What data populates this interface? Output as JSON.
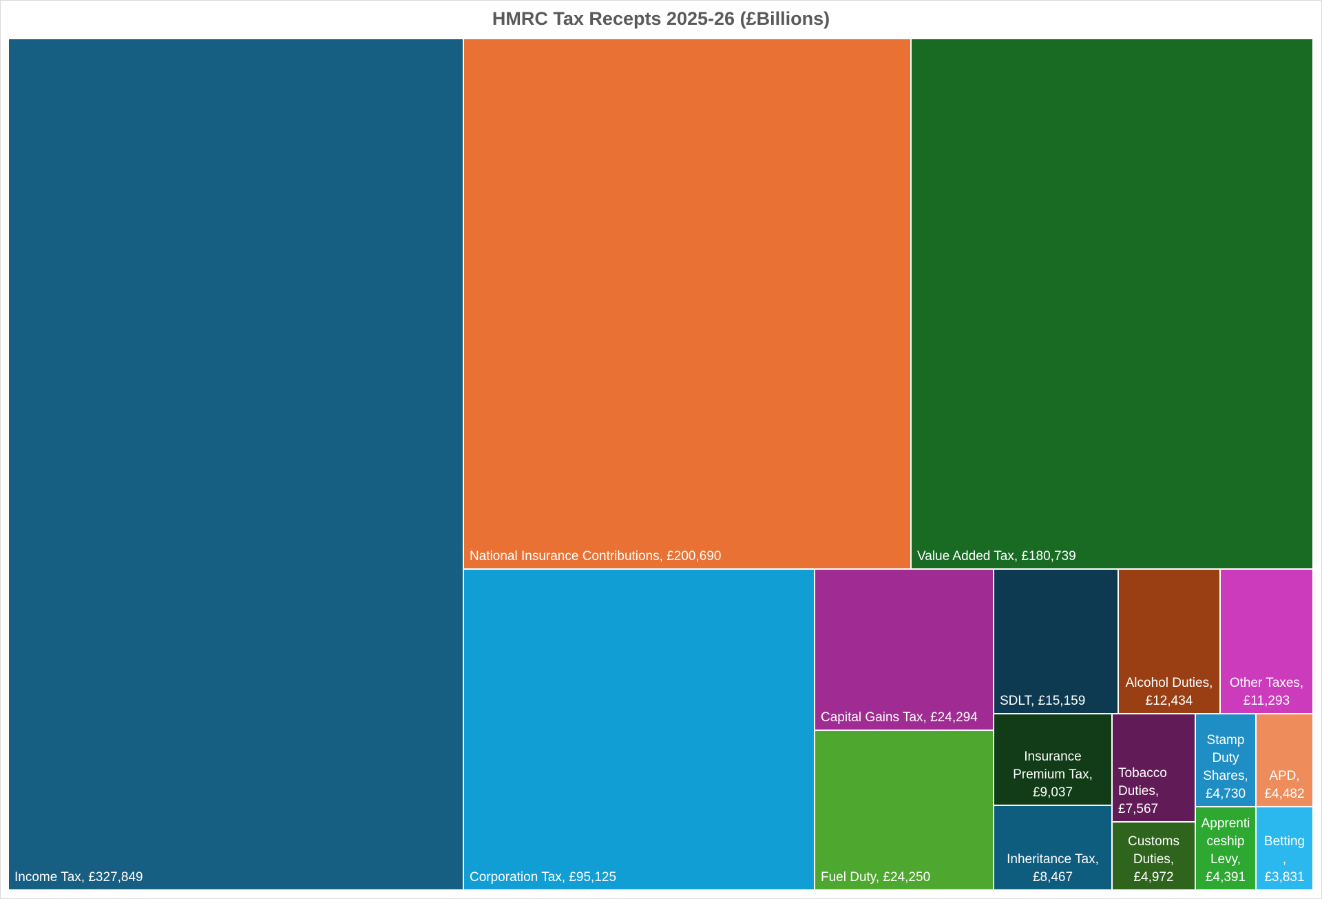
{
  "chart_data": {
    "type": "treemap",
    "title": "HMRC Tax Recepts 2025-26 (£Billions)",
    "items": [
      {
        "label": "Income Tax, £327,849",
        "name": "Income Tax",
        "value": 327849,
        "color": "#175F82"
      },
      {
        "label": "National Insurance Contributions, £200,690",
        "name": "National Insurance Contributions",
        "value": 200690,
        "color": "#E97133"
      },
      {
        "label": "Value Added Tax, £180,739",
        "name": "Value Added Tax",
        "value": 180739,
        "color": "#196B24"
      },
      {
        "label": "Corporation Tax, £95,125",
        "name": "Corporation Tax",
        "value": 95125,
        "color": "#119ED5"
      },
      {
        "label": "Capital Gains Tax, £24,294",
        "name": "Capital Gains Tax",
        "value": 24294,
        "color": "#A02B93"
      },
      {
        "label": "Fuel Duty, £24,250",
        "name": "Fuel Duty",
        "value": 24250,
        "color": "#4EA72E"
      },
      {
        "label": "SDLT, £15,159",
        "name": "SDLT",
        "value": 15159,
        "color": "#0E3A51"
      },
      {
        "label": "Alcohol Duties, £12,434",
        "name": "Alcohol Duties",
        "value": 12434,
        "color": "#9A3F14"
      },
      {
        "label": "Other Taxes, £11,293",
        "name": "Other Taxes",
        "value": 11293,
        "color": "#CC3BBC"
      },
      {
        "label": "Insurance Premium Tax, £9,037",
        "name": "Insurance Premium Tax",
        "value": 9037,
        "color": "#113C17"
      },
      {
        "label": "Inheritance Tax, £8,467",
        "name": "Inheritance Tax",
        "value": 8467,
        "color": "#0E5C7E"
      },
      {
        "label": "Tobacco Duties, £7,567",
        "name": "Tobacco Duties",
        "value": 7567,
        "color": "#611C57"
      },
      {
        "label": "Customs Duties, £4,972",
        "name": "Customs Duties",
        "value": 4972,
        "color": "#2F641C"
      },
      {
        "label": "Stamp Duty Shares, £4,730",
        "name": "Stamp Duty Shares",
        "value": 4730,
        "color": "#1F8EC4"
      },
      {
        "label": "APD, £4,482",
        "name": "APD",
        "value": 4482,
        "color": "#EE8C5C"
      },
      {
        "label": "Apprenticeship Levy, £4,391",
        "name": "Apprenticeship Levy",
        "value": 4391,
        "color": "#2DA830"
      },
      {
        "label": "Betting, £3,831",
        "name": "Betting",
        "value": 3831,
        "color": "#2BB8EE"
      }
    ]
  }
}
